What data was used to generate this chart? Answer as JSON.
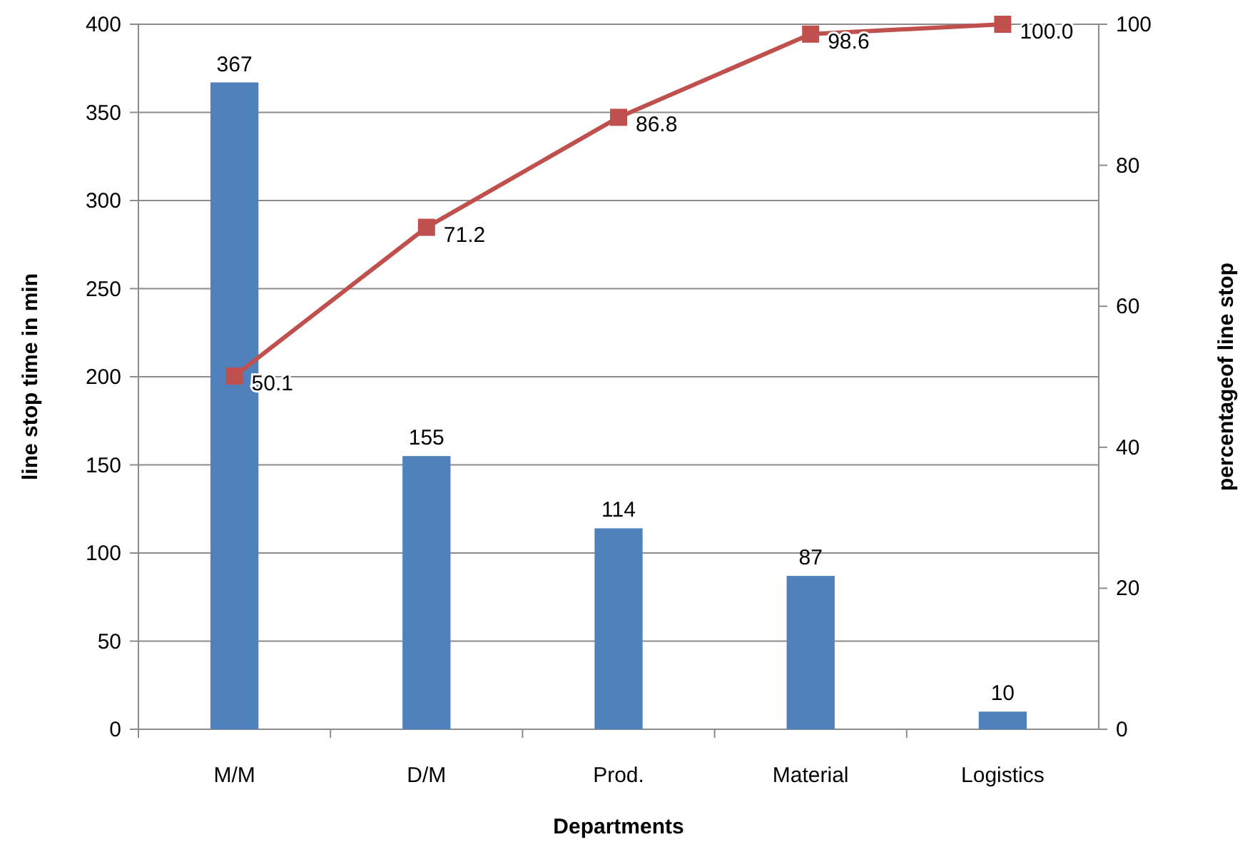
{
  "chart_data": {
    "type": "bar",
    "xlabel": "Departments",
    "ylabel": "line stop time in min",
    "y2label": "percentageof line stop",
    "categories": [
      "M/M",
      "D/M",
      "Prod.",
      "Material",
      "Logistics"
    ],
    "series": [
      {
        "color": "#4f81bd",
        "values": [
          367,
          155,
          114,
          87,
          10
        ],
        "value_labels": [
          "367",
          "155",
          "114",
          "87",
          "10"
        ]
      },
      {
        "type": "line",
        "axis": "y2",
        "color": "#c0504d",
        "values": [
          50.1,
          71.2,
          86.8,
          98.6,
          100.0
        ],
        "value_labels": [
          "50.1",
          "71.2",
          "86.8",
          "98.6",
          "100.0"
        ]
      }
    ],
    "ylim": [
      0,
      400
    ],
    "yticks": [
      0,
      50,
      100,
      150,
      200,
      250,
      300,
      350,
      400
    ],
    "y2lim": [
      0,
      100
    ],
    "y2ticks": [
      0,
      20,
      40,
      60,
      80,
      100
    ],
    "grid": "y",
    "marker": "square"
  }
}
